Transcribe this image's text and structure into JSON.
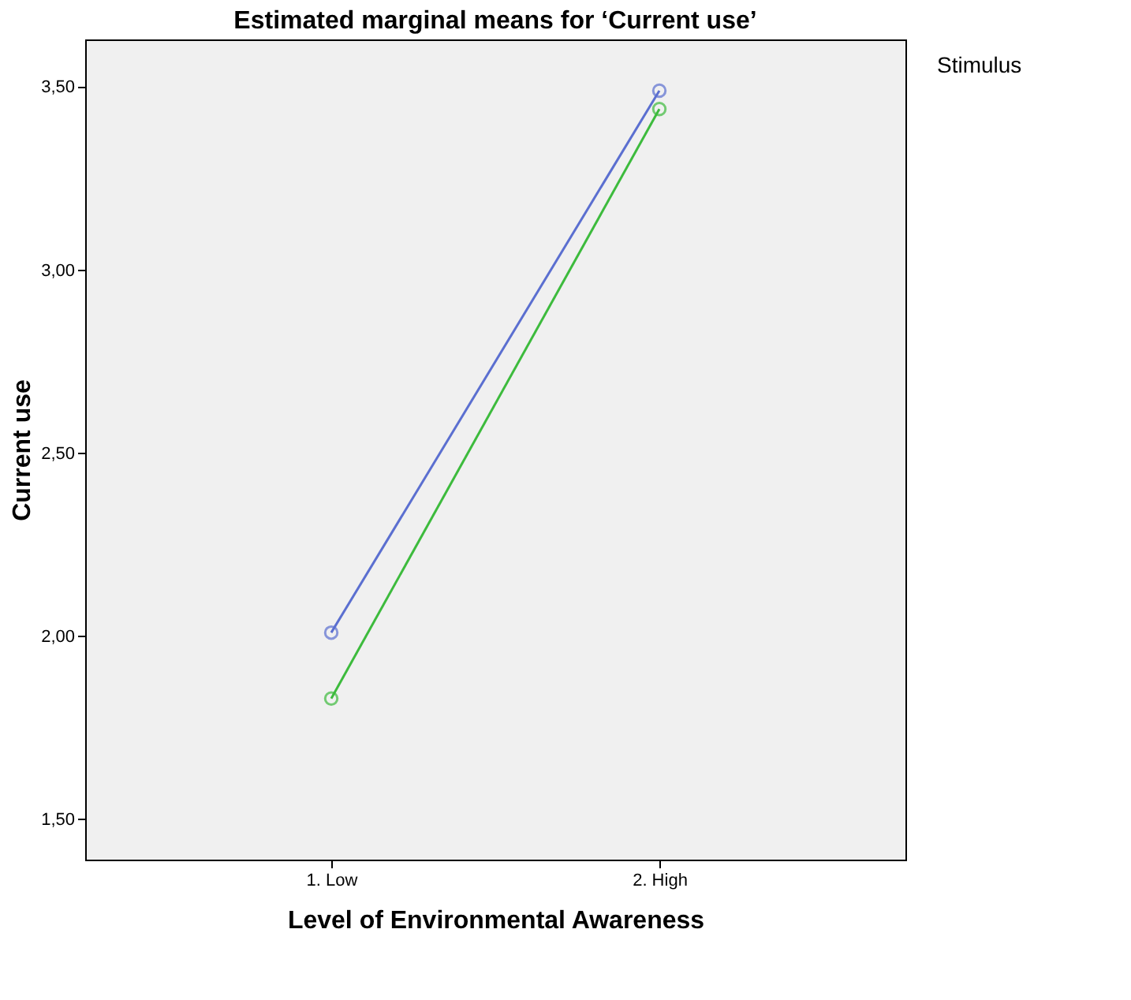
{
  "chart_data": {
    "type": "line",
    "title": "Estimated marginal means for ‘Current use’",
    "xlabel": "Level of Environmental Awareness",
    "ylabel": "Current use",
    "annotations": [
      "Stimulus"
    ],
    "categories": [
      "1. Low",
      "2. High"
    ],
    "series": [
      {
        "color": "#5b6fd0",
        "values": [
          2.01,
          3.49
        ]
      },
      {
        "color": "#3dbb3d",
        "values": [
          1.83,
          3.44
        ]
      }
    ],
    "ylim": [
      1.39,
      3.63
    ],
    "yticks": [
      {
        "value": 1.5,
        "label": "1,50"
      },
      {
        "value": 2.0,
        "label": "2,00"
      },
      {
        "value": 2.5,
        "label": "2,50"
      },
      {
        "value": 3.0,
        "label": "3,00"
      },
      {
        "value": 3.5,
        "label": "3,50"
      }
    ],
    "grid": false,
    "marker": "circle",
    "line_style": "solid"
  }
}
